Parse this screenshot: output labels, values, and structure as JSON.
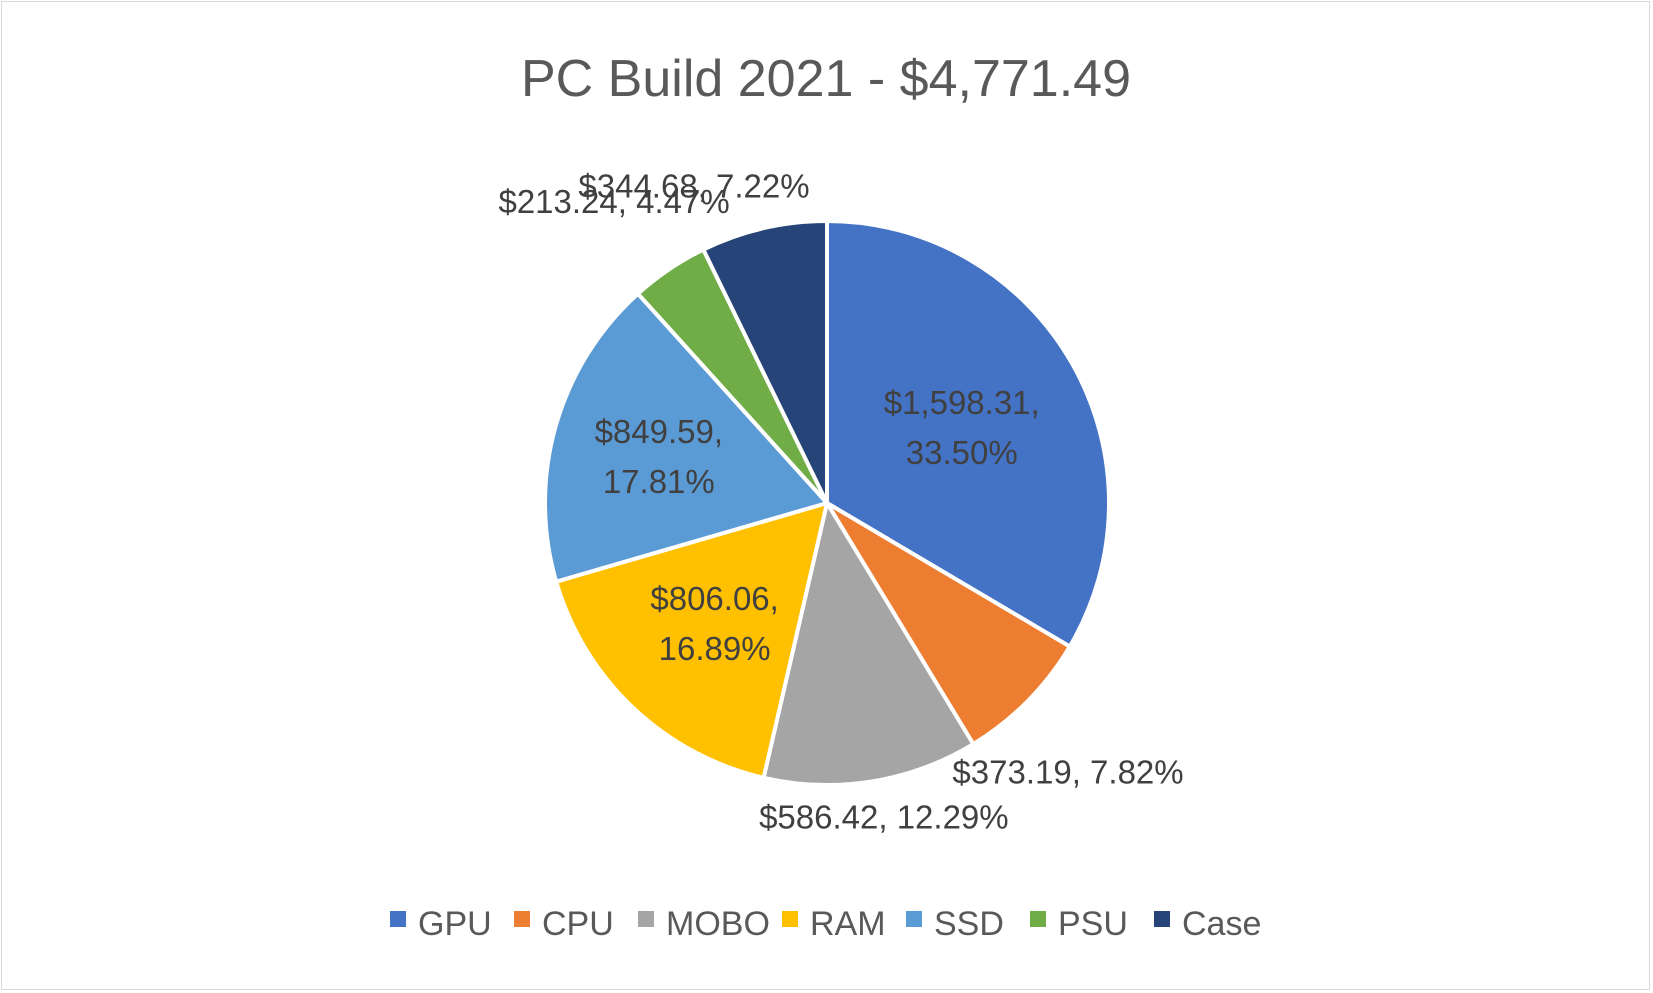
{
  "chart_data": {
    "type": "pie",
    "title": "PC Build 2021 - $4,771.49",
    "categories": [
      "GPU",
      "CPU",
      "MOBO",
      "RAM",
      "SSD",
      "PSU",
      "Case"
    ],
    "values": [
      1598.31,
      373.19,
      586.42,
      806.06,
      849.59,
      213.24,
      344.68
    ],
    "percentages": [
      33.5,
      7.82,
      12.29,
      16.89,
      17.81,
      4.47,
      7.22
    ],
    "data_labels": [
      "$1,598.31, 33.50%",
      "$373.19, 7.82%",
      "$586.42, 12.29%",
      "$806.06, 16.89%",
      "$849.59, 17.81%",
      "$213.24, 4.47%",
      "$344.68, 7.22%"
    ],
    "colors": [
      "#4472C4",
      "#ED7D31",
      "#A5A5A5",
      "#FFC000",
      "#5B9BD5",
      "#70AD47",
      "#264478"
    ],
    "legend_position": "bottom",
    "start_angle": "12 o'clock",
    "direction": "clockwise"
  }
}
